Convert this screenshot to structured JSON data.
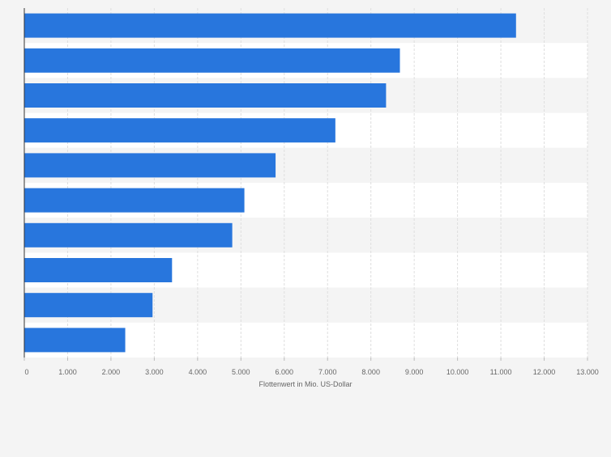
{
  "chart_data": {
    "type": "bar",
    "orientation": "horizontal",
    "categories": [
      "",
      "",
      "",
      "",
      "",
      "",
      "",
      "",
      "",
      ""
    ],
    "values": [
      11350,
      8670,
      8350,
      7180,
      5800,
      5080,
      4800,
      3410,
      2960,
      2330
    ],
    "title": "",
    "xlabel": "Flottenwert in Mio. US-Dollar",
    "ylabel": "",
    "xlim": [
      0,
      13000
    ],
    "xticks": [
      0,
      1000,
      2000,
      3000,
      4000,
      5000,
      6000,
      7000,
      8000,
      9000,
      10000,
      11000,
      12000,
      13000
    ],
    "xtick_labels": [
      "0",
      "1.000",
      "2.000",
      "3.000",
      "4.000",
      "5.000",
      "6.000",
      "7.000",
      "8.000",
      "9.000",
      "10.000",
      "11.000",
      "12.000",
      "13.000"
    ],
    "grid": true,
    "legend": "none",
    "colors": {
      "bar": "#2876dd",
      "band_light": "#f4f4f4",
      "band_white": "#ffffff",
      "gridline": "#dedede",
      "axis": "#333333",
      "tick_text": "#666666",
      "background": "#f4f4f4"
    }
  }
}
